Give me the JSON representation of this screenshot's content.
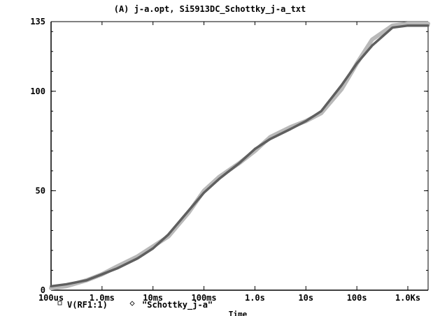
{
  "chart_data": {
    "type": "line",
    "title": "(A) j-a.opt, Si5913DC_Schottky_j-a_txt",
    "xlabel": "Time",
    "ylabel": "",
    "x_scale": "log",
    "x_unit": "s",
    "xlim": [
      0.0001,
      2500
    ],
    "ylim": [
      0,
      135
    ],
    "x_ticks": [
      {
        "value": 0.0001,
        "label": "100us"
      },
      {
        "value": 0.001,
        "label": "1.0ms"
      },
      {
        "value": 0.01,
        "label": "10ms"
      },
      {
        "value": 0.1,
        "label": "100ms"
      },
      {
        "value": 1,
        "label": "1.0s"
      },
      {
        "value": 10,
        "label": "10s"
      },
      {
        "value": 100,
        "label": "100s"
      },
      {
        "value": 1000,
        "label": "1.0Ks"
      }
    ],
    "y_ticks": [
      {
        "value": 0,
        "label": "0"
      },
      {
        "value": 50,
        "label": "50"
      },
      {
        "value": 100,
        "label": "100"
      },
      {
        "value": 135,
        "label": "135"
      }
    ],
    "grid": false,
    "legend_position": "bottom-left",
    "series": [
      {
        "name": "V(RF1:1)",
        "marker": "square",
        "color": "#5f5f5f",
        "x": [
          0.0001,
          0.0002,
          0.0005,
          0.001,
          0.002,
          0.005,
          0.01,
          0.02,
          0.05,
          0.1,
          0.2,
          0.5,
          1,
          2,
          5,
          10,
          20,
          50,
          100,
          200,
          500,
          1000,
          2500
        ],
        "y": [
          2,
          3,
          5,
          8,
          11,
          16,
          21,
          28,
          40,
          49,
          56,
          64,
          71,
          76,
          81,
          85,
          90,
          103,
          114,
          123,
          132,
          133,
          133
        ]
      },
      {
        "name": "\"Schottky_j-a\"",
        "marker": "diamond",
        "color": "#b9b9b9",
        "x": [
          0.0001,
          0.0002,
          0.0005,
          0.001,
          0.002,
          0.005,
          0.01,
          0.02,
          0.05,
          0.1,
          0.2,
          0.5,
          1,
          2,
          5,
          10,
          20,
          50,
          100,
          200,
          500,
          1000,
          2500
        ],
        "y": [
          1,
          2,
          5,
          8,
          12,
          17,
          22,
          27,
          39,
          50,
          57,
          64,
          70,
          77,
          82,
          85,
          89,
          101,
          114,
          126,
          133,
          134,
          134
        ]
      }
    ]
  }
}
